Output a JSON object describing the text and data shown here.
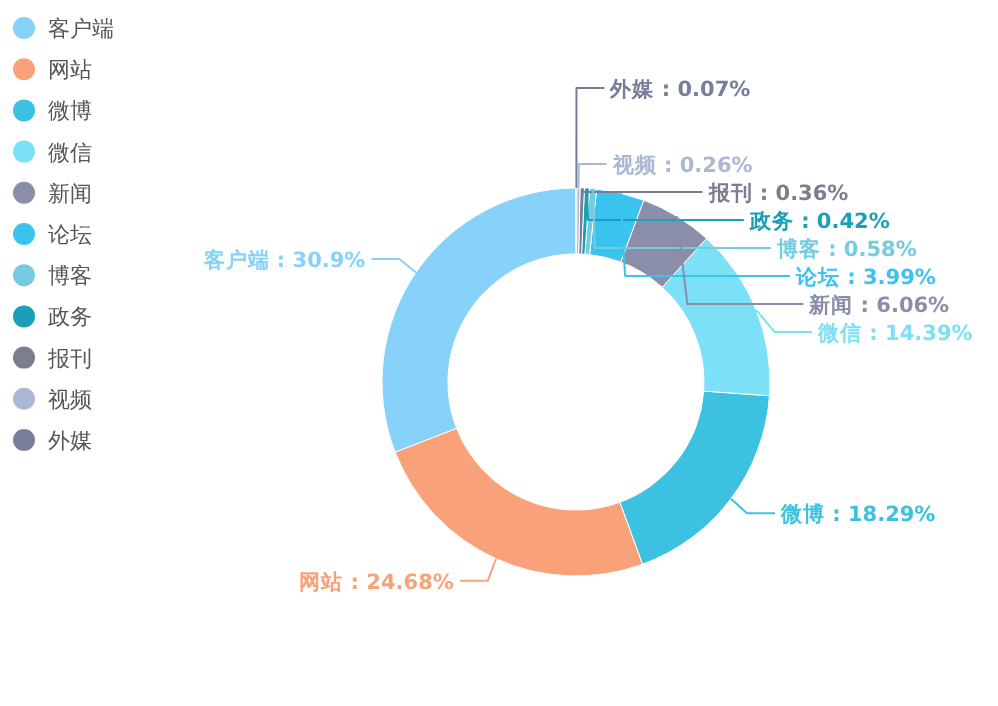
{
  "chart_data": {
    "type": "donut",
    "categories": [
      "客户端",
      "网站",
      "微博",
      "微信",
      "新闻",
      "论坛",
      "博客",
      "政务",
      "报刊",
      "视频",
      "外媒"
    ],
    "values": [
      30.9,
      24.68,
      18.29,
      14.39,
      6.06,
      3.99,
      0.58,
      0.42,
      0.36,
      0.26,
      0.07
    ],
    "colors": [
      "#87d2fb",
      "#f9a27a",
      "#3cc1e1",
      "#7ce0f7",
      "#8a8ea8",
      "#3bc3f0",
      "#75cbe0",
      "#1a9fb9",
      "#7b7e8c",
      "#a9b8d6",
      "#767e9a"
    ],
    "value_labels": [
      "客户端 : 30.9%",
      "网站 : 24.68%",
      "微博 : 18.29%",
      "微信 : 14.39%",
      "新闻 : 6.06%",
      "论坛 : 3.99%",
      "博客 : 0.58%",
      "政务 : 0.42%",
      "报刊 : 0.36%",
      "视频 : 0.26%",
      "外媒 : 0.07%"
    ],
    "legend": "left"
  }
}
